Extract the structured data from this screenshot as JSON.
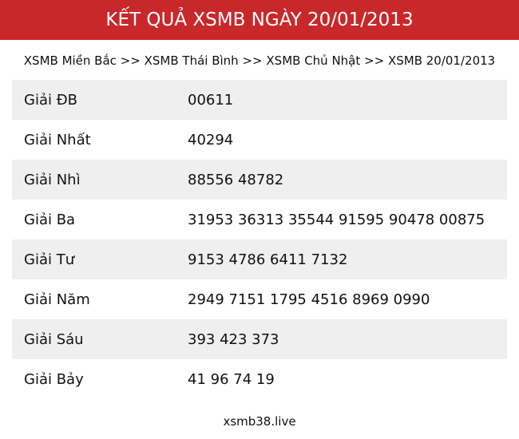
{
  "header": {
    "title": "KẾT QUẢ XSMB NGÀY 20/01/2013"
  },
  "breadcrumb": {
    "items": [
      "XSMB Miền Bắc",
      "XSMB Thái Bình",
      "XSMB Chủ Nhật",
      "XSMB 20/01/2013"
    ],
    "separator": ">>"
  },
  "results": [
    {
      "label": "Giải ĐB",
      "value": "00611"
    },
    {
      "label": "Giải Nhất",
      "value": "40294"
    },
    {
      "label": "Giải Nhì",
      "value": "88556 48782"
    },
    {
      "label": "Giải Ba",
      "value": "31953 36313 35544 91595 90478 00875"
    },
    {
      "label": "Giải Tư",
      "value": "9153 4786 6411 7132"
    },
    {
      "label": "Giải Năm",
      "value": "2949 7151 1795 4516 8969 0990"
    },
    {
      "label": "Giải Sáu",
      "value": "393 423 373"
    },
    {
      "label": "Giải Bảy",
      "value": "41 96 74 19"
    }
  ],
  "footer": {
    "site": "xsmb38.live"
  },
  "colors": {
    "header_bg": "#c9282b",
    "row_alt_bg": "#efefef"
  }
}
